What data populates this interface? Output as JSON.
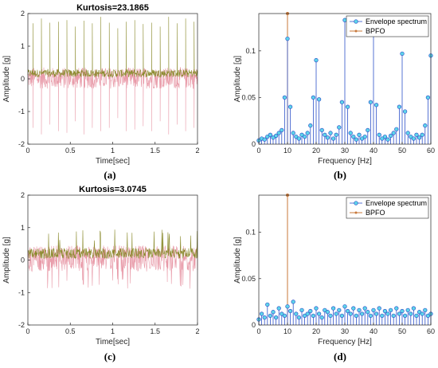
{
  "colors": {
    "raw_signal": "#e89aa8",
    "filtered_signal": "#8a8a2c",
    "envelope": "#2e52c9",
    "marker_fill": "#5dd6ea",
    "bpfo": "#c8783a",
    "axis": "#262626"
  },
  "chart_data": [
    {
      "type": "line",
      "panel": "(a)",
      "title": "Kurtosis=23.1865",
      "xlabel": "Time[sec]",
      "ylabel": "Amplitude [g]",
      "xlim": [
        0,
        2
      ],
      "ylim": [
        -2,
        2
      ],
      "xticks": [
        0,
        0.5,
        1,
        1.5,
        2
      ],
      "xtick_labels": [
        "0",
        "0.5",
        "1",
        "1.5",
        "2"
      ],
      "yticks": [
        -2,
        -1,
        0,
        1,
        2
      ],
      "ytick_labels": [
        "-2",
        "-1",
        "0",
        "1",
        "2"
      ],
      "signal": {
        "baseline_band": [
          -0.3,
          0.35
        ],
        "impulse_period_s": 0.1,
        "first_impulse_s": 0.06,
        "impulse_peaks": [
          1.7,
          1.85,
          1.72,
          1.75,
          1.8,
          1.6,
          1.78,
          1.7,
          1.9,
          1.72,
          1.55,
          1.75,
          1.8,
          1.68,
          1.72,
          1.6,
          1.9,
          1.7,
          1.85,
          1.75
        ],
        "impulse_troughs": [
          -1.5,
          -1.7,
          -1.4,
          -1.6,
          -1.65,
          -1.3,
          -1.7,
          -1.5,
          -1.6,
          -1.5,
          -1.2,
          -1.6,
          -1.55,
          -1.45,
          -1.6,
          -1.3,
          -1.7,
          -1.4,
          -1.6,
          -1.5
        ]
      },
      "grid": false
    },
    {
      "type": "stem",
      "panel": "(b)",
      "xlabel": "Frequency [Hz]",
      "ylabel": "Amplitude [g]",
      "xlim": [
        0,
        60
      ],
      "ylim": [
        0,
        0.14
      ],
      "xticks": [
        0,
        10,
        20,
        30,
        40,
        50,
        60
      ],
      "xtick_labels": [
        "0",
        "10",
        "20",
        "30",
        "40",
        "50",
        "60"
      ],
      "yticks": [
        0,
        0.05,
        0.1
      ],
      "ytick_labels": [
        "0",
        "0.05",
        "0.1"
      ],
      "legend": [
        "Envelope spectrum",
        "BPFO"
      ],
      "legend_position": "top-right",
      "series": [
        {
          "name": "Envelope spectrum",
          "x": [
            0,
            1,
            2,
            3,
            4,
            5,
            6,
            7,
            8,
            9,
            10,
            11,
            12,
            13,
            14,
            15,
            16,
            17,
            18,
            19,
            20,
            21,
            22,
            23,
            24,
            25,
            26,
            27,
            28,
            29,
            30,
            31,
            32,
            33,
            34,
            35,
            36,
            37,
            38,
            39,
            40,
            41,
            42,
            43,
            44,
            45,
            46,
            47,
            48,
            49,
            50,
            51,
            52,
            53,
            54,
            55,
            56,
            57,
            58,
            59,
            60
          ],
          "values": [
            0.004,
            0.006,
            0.005,
            0.008,
            0.01,
            0.007,
            0.009,
            0.012,
            0.015,
            0.05,
            0.113,
            0.04,
            0.012,
            0.008,
            0.006,
            0.01,
            0.008,
            0.012,
            0.02,
            0.05,
            0.09,
            0.048,
            0.015,
            0.01,
            0.007,
            0.012,
            0.006,
            0.01,
            0.018,
            0.045,
            0.133,
            0.04,
            0.012,
            0.008,
            0.005,
            0.01,
            0.006,
            0.008,
            0.015,
            0.045,
            0.133,
            0.042,
            0.01,
            0.006,
            0.008,
            0.005,
            0.009,
            0.012,
            0.016,
            0.04,
            0.097,
            0.035,
            0.012,
            0.008,
            0.006,
            0.01,
            0.007,
            0.01,
            0.02,
            0.05,
            0.095
          ]
        },
        {
          "name": "BPFO",
          "x": [
            10
          ],
          "values": [
            0.14
          ]
        }
      ],
      "grid": false
    },
    {
      "type": "line",
      "panel": "(c)",
      "title": "Kurtosis=3.0745",
      "xlabel": "Time[sec]",
      "ylabel": "Amplitude [g]",
      "xlim": [
        0,
        2
      ],
      "ylim": [
        -2,
        2
      ],
      "xticks": [
        0,
        0.5,
        1,
        1.5,
        2
      ],
      "xtick_labels": [
        "0",
        "0.5",
        "1",
        "1.5",
        "2"
      ],
      "yticks": [
        -2,
        -1,
        0,
        1,
        2
      ],
      "ytick_labels": [
        "-2",
        "-1",
        "0",
        "1",
        "2"
      ],
      "signal": {
        "baseline_band": [
          -0.35,
          0.45
        ],
        "peak_max": 0.95,
        "trough_min": -0.95
      },
      "grid": false
    },
    {
      "type": "stem",
      "panel": "(d)",
      "xlabel": "Frequency [Hz]",
      "ylabel": "Amplitude [g]",
      "xlim": [
        0,
        60
      ],
      "ylim": [
        0,
        0.14
      ],
      "xticks": [
        0,
        10,
        20,
        30,
        40,
        50,
        60
      ],
      "xtick_labels": [
        "0",
        "10",
        "20",
        "30",
        "40",
        "50",
        "60"
      ],
      "yticks": [
        0,
        0.05,
        0.1
      ],
      "ytick_labels": [
        "0",
        "0.05",
        "0.1"
      ],
      "legend": [
        "Envelope spectrum",
        "BPFO"
      ],
      "legend_position": "top-right",
      "series": [
        {
          "name": "Envelope spectrum",
          "x": [
            0,
            1,
            2,
            3,
            4,
            5,
            6,
            7,
            8,
            9,
            10,
            11,
            12,
            13,
            14,
            15,
            16,
            17,
            18,
            19,
            20,
            21,
            22,
            23,
            24,
            25,
            26,
            27,
            28,
            29,
            30,
            31,
            32,
            33,
            34,
            35,
            36,
            37,
            38,
            39,
            40,
            41,
            42,
            43,
            44,
            45,
            46,
            47,
            48,
            49,
            50,
            51,
            52,
            53,
            54,
            55,
            56,
            57,
            58,
            59,
            60
          ],
          "values": [
            0.006,
            0.012,
            0.008,
            0.022,
            0.01,
            0.014,
            0.008,
            0.018,
            0.012,
            0.01,
            0.02,
            0.015,
            0.025,
            0.012,
            0.008,
            0.016,
            0.01,
            0.012,
            0.015,
            0.01,
            0.018,
            0.012,
            0.008,
            0.016,
            0.014,
            0.01,
            0.018,
            0.012,
            0.016,
            0.01,
            0.02,
            0.015,
            0.012,
            0.018,
            0.01,
            0.016,
            0.012,
            0.018,
            0.014,
            0.01,
            0.016,
            0.012,
            0.018,
            0.01,
            0.015,
            0.012,
            0.016,
            0.01,
            0.018,
            0.012,
            0.015,
            0.01,
            0.016,
            0.012,
            0.018,
            0.01,
            0.014,
            0.012,
            0.016,
            0.01,
            0.012
          ]
        },
        {
          "name": "BPFO",
          "x": [
            10
          ],
          "values": [
            0.14
          ]
        }
      ],
      "grid": false
    }
  ]
}
